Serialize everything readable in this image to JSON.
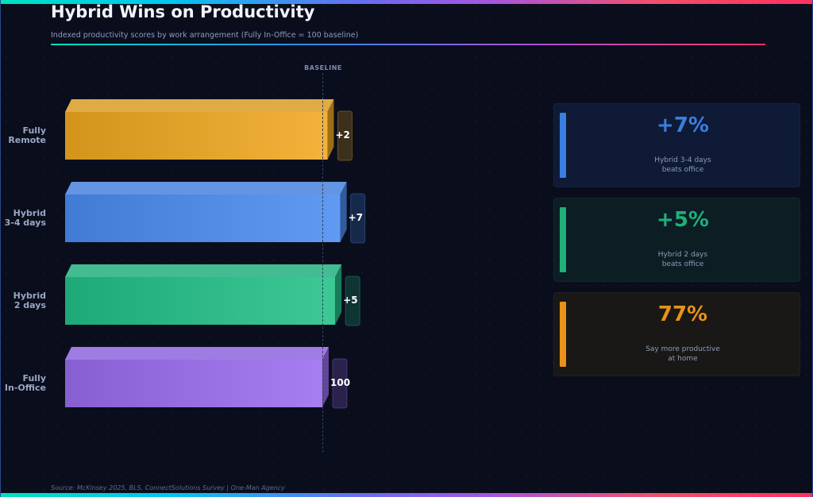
{
  "title": "Hybrid Wins on Productivity",
  "subtitle": "Indexed productivity scores by work arrangement (Fully In-Office = 100 baseline)",
  "baseline_label": "BASELINE",
  "source": "Source: McKinsey 2025, BLS, ConnectSolutions Survey | One-Man Agency",
  "chart_data": {
    "type": "bar",
    "orientation": "horizontal",
    "title": "Hybrid Wins on Productivity",
    "categories": [
      "Fully\nRemote",
      "Hybrid\n3-4 days",
      "Hybrid\n2 days",
      "Fully\nIn-Office"
    ],
    "values": [
      102,
      107,
      105,
      100
    ],
    "value_labels": [
      "+2",
      "+7",
      "+5",
      "100"
    ],
    "baseline": 100,
    "colors": [
      "#f0a820",
      "#4a8cf0",
      "#22c088",
      "#9a6cf0"
    ]
  },
  "cards": [
    {
      "value": "+7%",
      "desc": "Hybrid 3-4 days\nbeats office",
      "color": "#3a7ee0",
      "bg": "#0e1a36"
    },
    {
      "value": "+5%",
      "desc": "Hybrid 2 days\nbeats office",
      "color": "#1fb07a",
      "bg": "#0c1e24"
    },
    {
      "value": "77%",
      "desc": "Say more productive\nat home",
      "color": "#e8921a",
      "bg": "#1a1816"
    }
  ]
}
